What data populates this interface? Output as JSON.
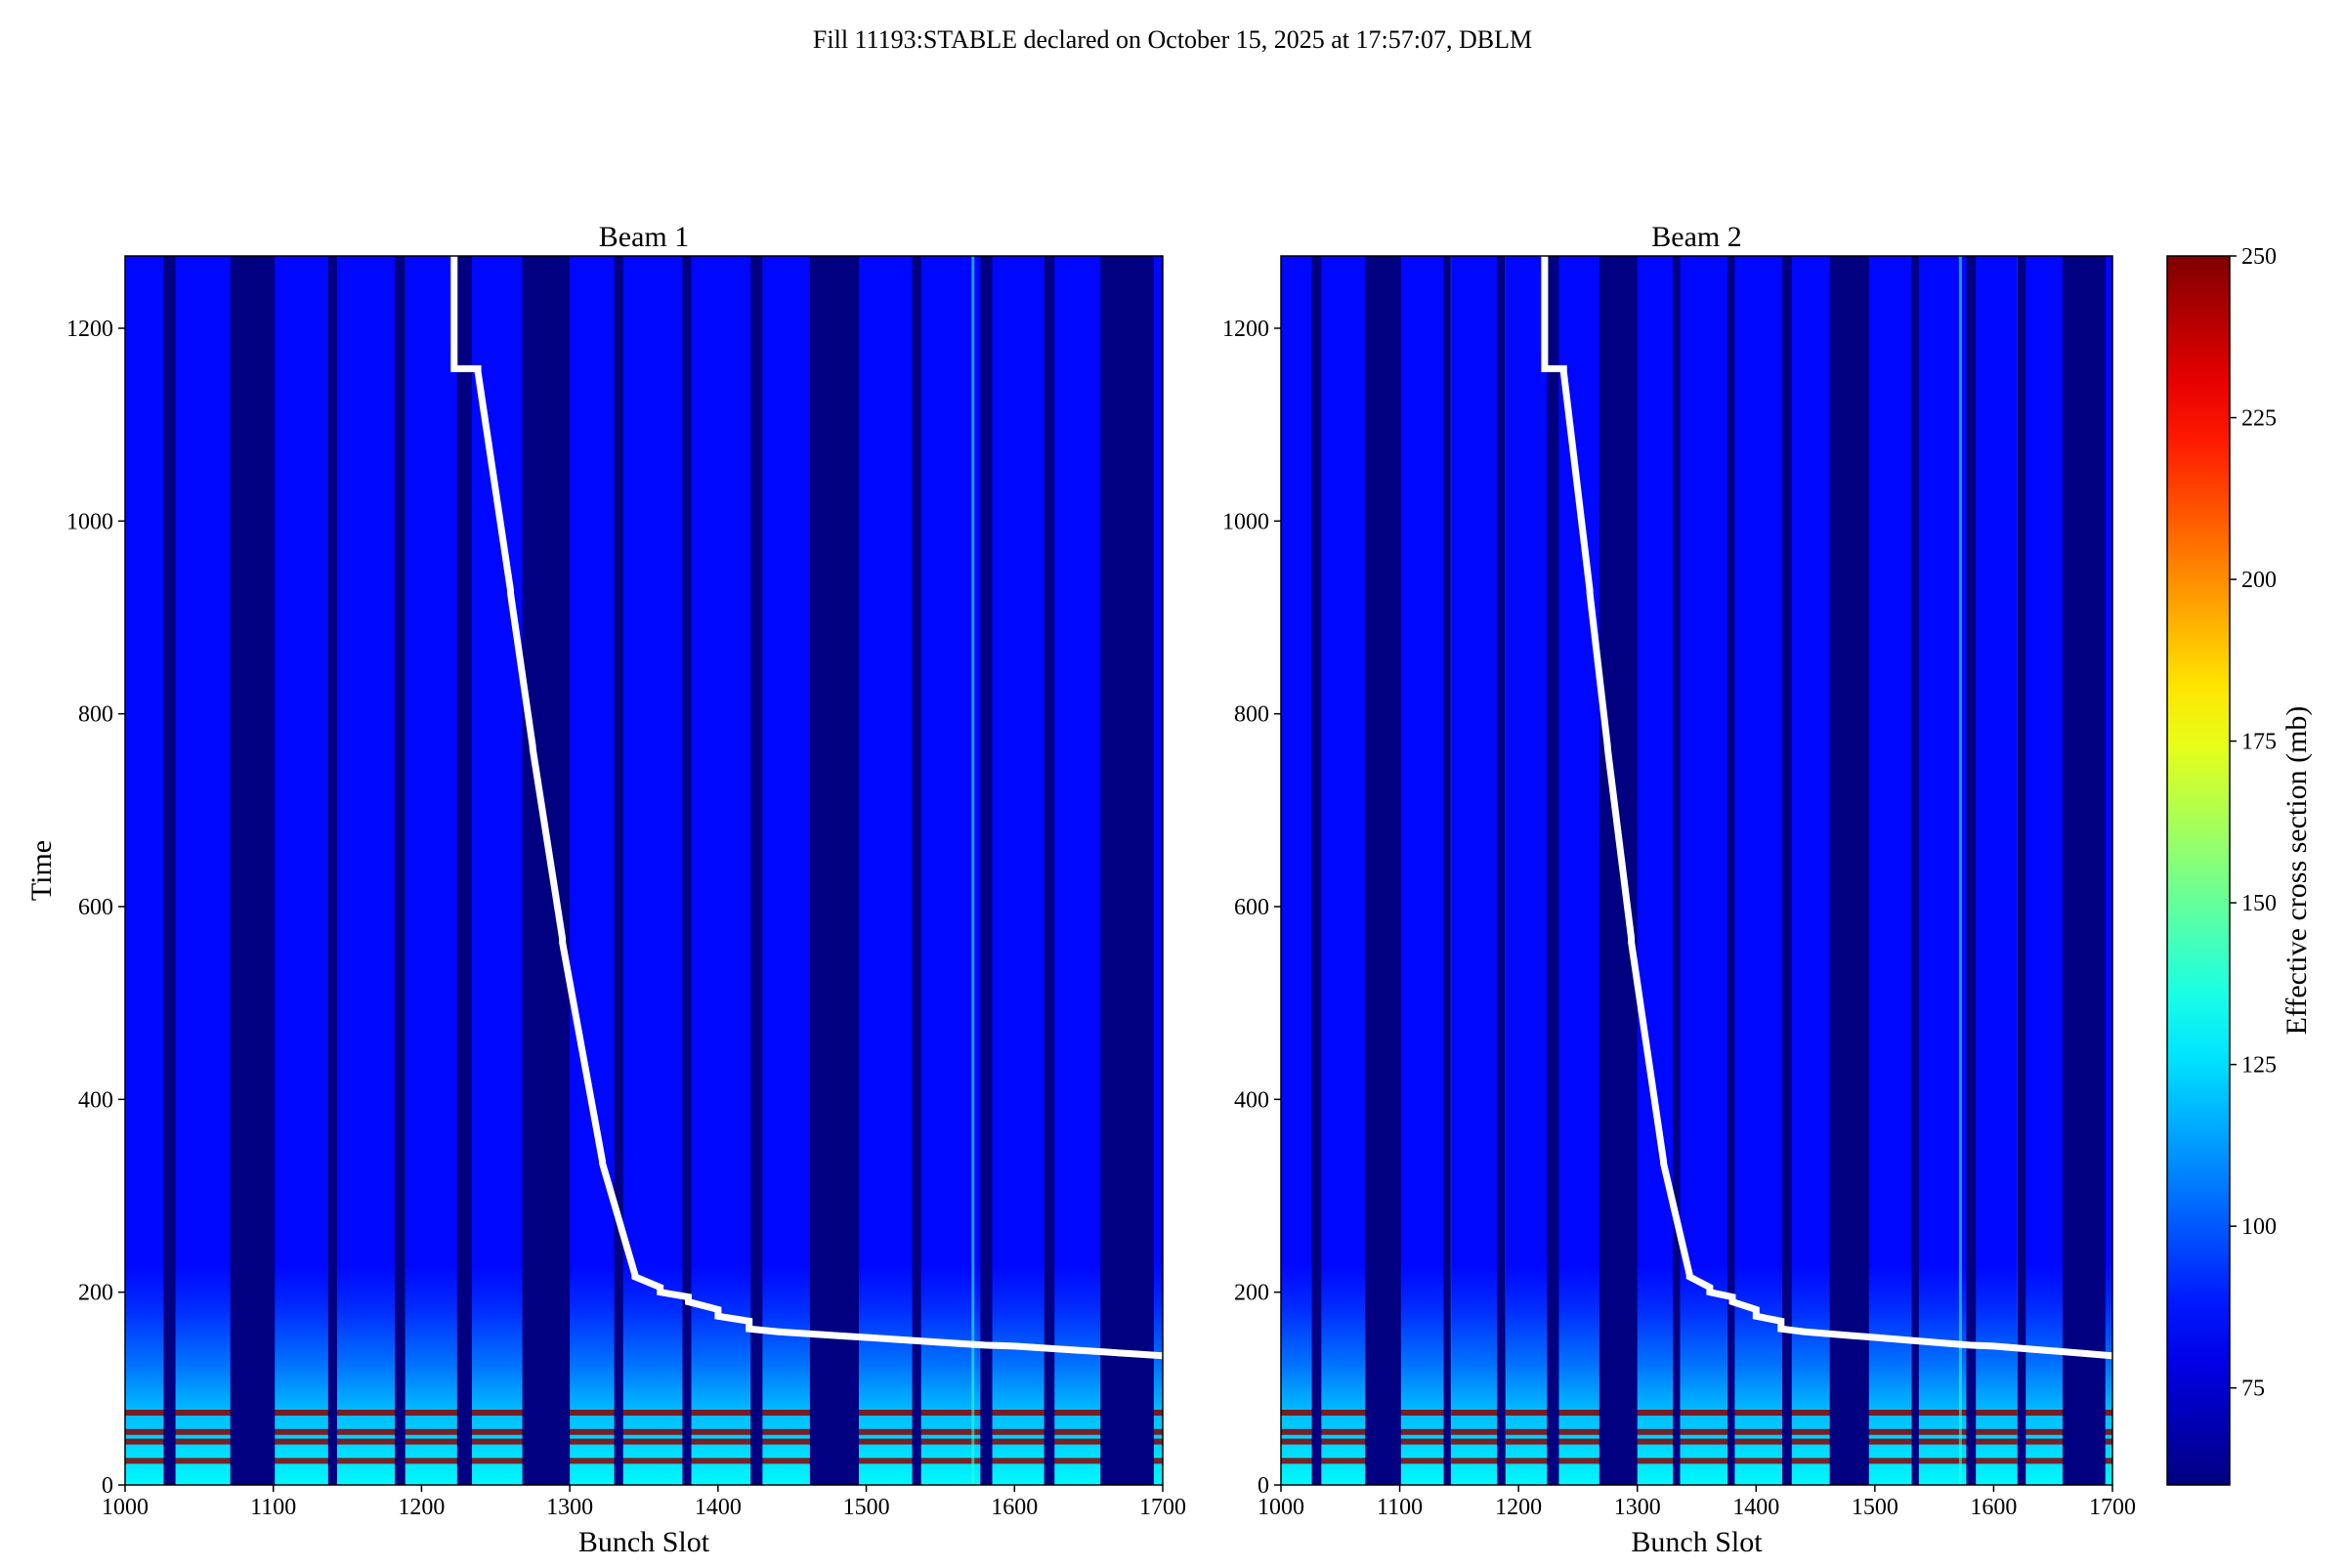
{
  "figure": {
    "suptitle": "Fill 11193:STABLE declared on October 15, 2025 at 17:57:07, DBLM"
  },
  "colorbar": {
    "label": "Effective cross section (mb)",
    "min": 60,
    "max": 250,
    "ticks": [
      "75",
      "100",
      "125",
      "150",
      "175",
      "200",
      "225",
      "250"
    ],
    "colormap": "jet"
  },
  "colors": {
    "dark_navy": "#00008b",
    "blue": "#0000ff",
    "line": "#ffffff",
    "hot": "#8b0000"
  },
  "chart_data": [
    {
      "type": "heatmap",
      "title": "Beam 1",
      "xlabel": "Bunch Slot",
      "ylabel": "Time",
      "xlim": [
        1000,
        1700
      ],
      "ylim": [
        0,
        1275
      ],
      "xticks": [
        "1000",
        "1100",
        "1200",
        "1300",
        "1400",
        "1500",
        "1600",
        "1700"
      ],
      "yticks": [
        "0",
        "200",
        "400",
        "600",
        "800",
        "1000",
        "1200"
      ],
      "background_value": 85,
      "empty_value": 60,
      "empty_slot_ranges": [
        [
          1026,
          1034
        ],
        [
          1071,
          1101
        ],
        [
          1137,
          1143
        ],
        [
          1182,
          1189
        ],
        [
          1224,
          1234
        ],
        [
          1268,
          1300
        ],
        [
          1330,
          1336
        ],
        [
          1376,
          1382
        ],
        [
          1422,
          1430
        ],
        [
          1462,
          1495
        ],
        [
          1531,
          1537
        ],
        [
          1577,
          1585
        ],
        [
          1620,
          1627
        ],
        [
          1658,
          1694
        ]
      ],
      "bright_columns": [
        1030,
        1142,
        1188,
        1232,
        1272,
        1380,
        1466,
        1572,
        1621,
        1661
      ],
      "low_time_band_top": 228,
      "hot_rows": [
        25,
        45,
        55,
        75
      ],
      "burnoff_curve": {
        "x": [
          1222,
          1222,
          1238,
          1238,
          1260,
          1260,
          1275,
          1275,
          1295,
          1295,
          1322,
          1322,
          1344,
          1344,
          1361,
          1361,
          1380,
          1380,
          1400,
          1400,
          1421,
          1421,
          1440,
          1460,
          1480,
          1500,
          1520,
          1540,
          1560,
          1580,
          1600,
          1620,
          1640,
          1660,
          1680,
          1700
        ],
        "y": [
          1275,
          1158,
          1158,
          1155,
          928,
          925,
          766,
          764,
          567,
          563,
          336,
          334,
          218,
          216,
          205,
          200,
          195,
          190,
          182,
          175,
          170,
          162,
          159,
          157,
          155,
          153,
          151,
          149,
          147,
          145,
          144,
          142,
          140,
          138,
          136,
          134
        ]
      }
    },
    {
      "type": "heatmap",
      "title": "Beam 2",
      "xlabel": "Bunch Slot",
      "ylabel": "",
      "xlim": [
        1000,
        1700
      ],
      "ylim": [
        0,
        1275
      ],
      "xticks": [
        "1000",
        "1100",
        "1200",
        "1300",
        "1400",
        "1500",
        "1600",
        "1700"
      ],
      "yticks": [
        "0",
        "200",
        "400",
        "600",
        "800",
        "1000",
        "1200"
      ],
      "background_value": 85,
      "empty_value": 60,
      "empty_slot_ranges": [
        [
          1026,
          1034
        ],
        [
          1071,
          1101
        ],
        [
          1137,
          1143
        ],
        [
          1182,
          1189
        ],
        [
          1224,
          1234
        ],
        [
          1268,
          1300
        ],
        [
          1330,
          1336
        ],
        [
          1376,
          1382
        ],
        [
          1422,
          1430
        ],
        [
          1462,
          1495
        ],
        [
          1531,
          1537
        ],
        [
          1577,
          1585
        ],
        [
          1620,
          1627
        ],
        [
          1658,
          1694
        ]
      ],
      "bright_columns": [
        1030,
        1142,
        1188,
        1232,
        1272,
        1380,
        1466,
        1572,
        1621,
        1661
      ],
      "low_time_band_top": 228,
      "hot_rows": [
        25,
        45,
        55,
        75
      ],
      "burnoff_curve": {
        "x": [
          1222,
          1222,
          1238,
          1238,
          1260,
          1260,
          1275,
          1275,
          1295,
          1295,
          1322,
          1322,
          1344,
          1344,
          1361,
          1361,
          1380,
          1380,
          1400,
          1400,
          1421,
          1421,
          1440,
          1460,
          1480,
          1500,
          1520,
          1540,
          1560,
          1580,
          1600,
          1620,
          1640,
          1660,
          1680,
          1700
        ],
        "y": [
          1275,
          1158,
          1158,
          1155,
          928,
          925,
          766,
          764,
          567,
          563,
          336,
          334,
          218,
          216,
          205,
          200,
          195,
          190,
          182,
          175,
          170,
          162,
          159,
          157,
          155,
          153,
          151,
          149,
          147,
          145,
          144,
          142,
          140,
          138,
          136,
          134
        ]
      }
    }
  ]
}
